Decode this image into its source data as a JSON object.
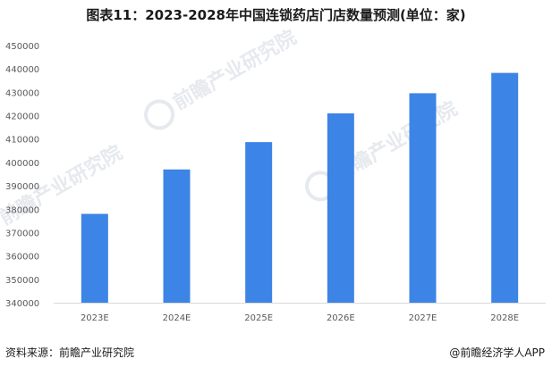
{
  "title": "图表11：2023-2028年中国连锁药店门店数量预测(单位：家)",
  "footer": {
    "source": "资料来源：前瞻产业研究院",
    "brand": "@前瞻经济学人APP"
  },
  "watermark": {
    "text": "前瞻产业研究院"
  },
  "colors": {
    "bar": "#3c84e6",
    "axis": "#d9d9d9",
    "text": "#595959"
  },
  "chart_data": {
    "type": "bar",
    "categories": [
      "2023E",
      "2024E",
      "2025E",
      "2026E",
      "2027E",
      "2028E"
    ],
    "values": [
      378000,
      397000,
      408700,
      421000,
      429600,
      438300
    ],
    "ylim": [
      340000,
      450000
    ],
    "yticks": [
      340000,
      350000,
      360000,
      370000,
      380000,
      390000,
      400000,
      410000,
      420000,
      430000,
      440000,
      450000
    ],
    "grid": false,
    "legend": "none"
  }
}
